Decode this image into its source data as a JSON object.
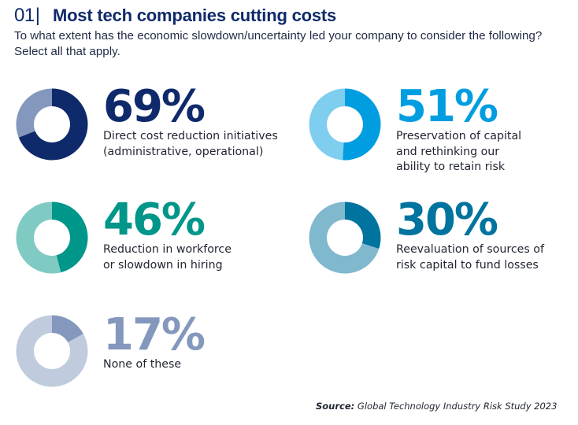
{
  "header": {
    "number": "01",
    "separator": "|",
    "title": "Most tech companies cutting costs",
    "subtitle": "To what extent has the economic slowdown/uncertainty led your company to consider the following? Select all that apply."
  },
  "source": {
    "label": "Source:",
    "text": "Global Technology Industry Risk Study 2023"
  },
  "chart_data": {
    "type": "pie",
    "variant": "donut",
    "title": "Most tech companies cutting costs",
    "subtitle": "To what extent has the economic slowdown/uncertainty led your company to consider the following? Select all that apply.",
    "unit": "%",
    "items": [
      {
        "id": "direct-cost-reduction",
        "value": 69,
        "label": "69%",
        "description": [
          "Direct cost reduction initiatives",
          "(administrative, operational)"
        ],
        "color": "#0f2a6b",
        "remainder_color": "#8497bd"
      },
      {
        "id": "preservation-of-capital",
        "value": 51,
        "label": "51%",
        "description": [
          "Preservation of capital",
          "and rethinking our",
          "ability to retain risk"
        ],
        "color": "#009ee0",
        "remainder_color": "#7fcdef"
      },
      {
        "id": "reduction-in-workforce",
        "value": 46,
        "label": "46%",
        "description": [
          "Reduction in workforce",
          "or slowdown in hiring"
        ],
        "color": "#00968a",
        "remainder_color": "#80cac4"
      },
      {
        "id": "reevaluation-of-risk-capital",
        "value": 30,
        "label": "30%",
        "description": [
          "Reevaluation of sources of",
          "risk capital to fund losses"
        ],
        "color": "#00739e",
        "remainder_color": "#80b8ce"
      },
      {
        "id": "none-of-these",
        "value": 17,
        "label": "17%",
        "description": [
          "None of these"
        ],
        "color": "#8497bd",
        "remainder_color": "#c1cbde"
      }
    ],
    "source": "Global Technology Industry Risk Study 2023"
  }
}
